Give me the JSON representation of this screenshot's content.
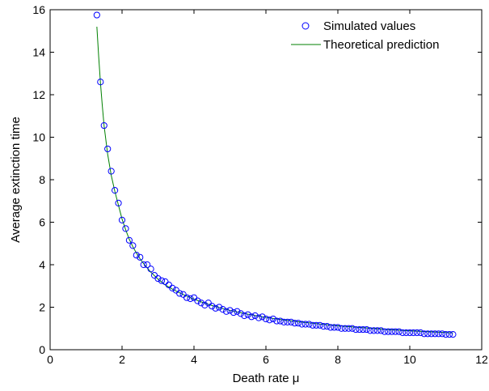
{
  "chart_data": {
    "type": "scatter",
    "title": "",
    "xlabel": "Death rate μ",
    "ylabel": "Average extinction time",
    "xlim": [
      0,
      12
    ],
    "ylim": [
      0,
      16
    ],
    "xticks": [
      "0",
      "2",
      "4",
      "6",
      "8",
      "10",
      "12"
    ],
    "yticks": [
      "0",
      "2",
      "4",
      "6",
      "8",
      "10",
      "12",
      "14",
      "16"
    ],
    "grid": false,
    "legend_position": "top-right",
    "series": [
      {
        "name": "Simulated values",
        "type": "scatter",
        "marker": "open-circle",
        "color": "#0000ff",
        "x": [
          1.3,
          1.4,
          1.5,
          1.6,
          1.7,
          1.8,
          1.9,
          2.0,
          2.1,
          2.2,
          2.3,
          2.4,
          2.5,
          2.6,
          2.7,
          2.8,
          2.9,
          3.0,
          3.1,
          3.2,
          3.3,
          3.4,
          3.5,
          3.6,
          3.7,
          3.8,
          3.9,
          4.0,
          4.1,
          4.2,
          4.3,
          4.4,
          4.5,
          4.6,
          4.7,
          4.8,
          4.9,
          5.0,
          5.1,
          5.2,
          5.3,
          5.4,
          5.5,
          5.6,
          5.7,
          5.8,
          5.9,
          6.0,
          6.1,
          6.2,
          6.3,
          6.4,
          6.5,
          6.6,
          6.7,
          6.8,
          6.9,
          7.0,
          7.1,
          7.2,
          7.3,
          7.4,
          7.5,
          7.6,
          7.7,
          7.8,
          7.9,
          8.0,
          8.1,
          8.2,
          8.3,
          8.4,
          8.5,
          8.6,
          8.7,
          8.8,
          8.9,
          9.0,
          9.1,
          9.2,
          9.3,
          9.4,
          9.5,
          9.6,
          9.7,
          9.8,
          9.9,
          10.0,
          10.1,
          10.2,
          10.3,
          10.4,
          10.5,
          10.6,
          10.7,
          10.8,
          10.9,
          11.0,
          11.1,
          11.2
        ],
        "y": [
          15.75,
          12.6,
          10.55,
          9.45,
          8.4,
          7.5,
          6.9,
          6.1,
          5.7,
          5.15,
          4.9,
          4.45,
          4.35,
          4.0,
          4.0,
          3.8,
          3.5,
          3.35,
          3.25,
          3.2,
          3.05,
          2.9,
          2.8,
          2.65,
          2.6,
          2.45,
          2.4,
          2.45,
          2.3,
          2.2,
          2.1,
          2.2,
          2.05,
          1.95,
          2.0,
          1.9,
          1.8,
          1.85,
          1.75,
          1.8,
          1.7,
          1.6,
          1.65,
          1.55,
          1.6,
          1.5,
          1.55,
          1.45,
          1.4,
          1.45,
          1.35,
          1.35,
          1.3,
          1.3,
          1.3,
          1.25,
          1.25,
          1.2,
          1.2,
          1.2,
          1.15,
          1.15,
          1.15,
          1.1,
          1.1,
          1.05,
          1.05,
          1.05,
          1.0,
          1.0,
          1.0,
          1.0,
          0.95,
          0.95,
          0.95,
          0.95,
          0.9,
          0.9,
          0.9,
          0.9,
          0.85,
          0.85,
          0.85,
          0.85,
          0.85,
          0.8,
          0.8,
          0.8,
          0.8,
          0.8,
          0.8,
          0.75,
          0.75,
          0.75,
          0.75,
          0.75,
          0.75,
          0.72,
          0.72,
          0.72
        ]
      },
      {
        "name": "Theoretical prediction",
        "type": "line",
        "color": "#008000",
        "x": [
          1.3,
          1.35,
          1.4,
          1.45,
          1.5,
          1.6,
          1.7,
          1.8,
          1.9,
          2.0,
          2.1,
          2.2,
          2.3,
          2.4,
          2.5,
          2.6,
          2.8,
          3.0,
          3.2,
          3.4,
          3.6,
          3.8,
          4.0,
          4.25,
          4.5,
          4.75,
          5.0,
          5.5,
          6.0,
          6.5,
          7.0,
          7.5,
          8.0,
          8.5,
          9.0,
          9.5,
          10.0,
          10.5,
          11.0,
          11.2
        ],
        "y": [
          15.2,
          13.8,
          12.55,
          11.5,
          10.55,
          9.2,
          8.2,
          7.45,
          6.8,
          6.15,
          5.65,
          5.2,
          4.85,
          4.55,
          4.28,
          4.05,
          3.65,
          3.32,
          3.05,
          2.85,
          2.68,
          2.52,
          2.38,
          2.22,
          2.08,
          1.96,
          1.85,
          1.67,
          1.52,
          1.4,
          1.3,
          1.21,
          1.13,
          1.06,
          1.0,
          0.94,
          0.89,
          0.85,
          0.81,
          0.79
        ]
      }
    ]
  }
}
